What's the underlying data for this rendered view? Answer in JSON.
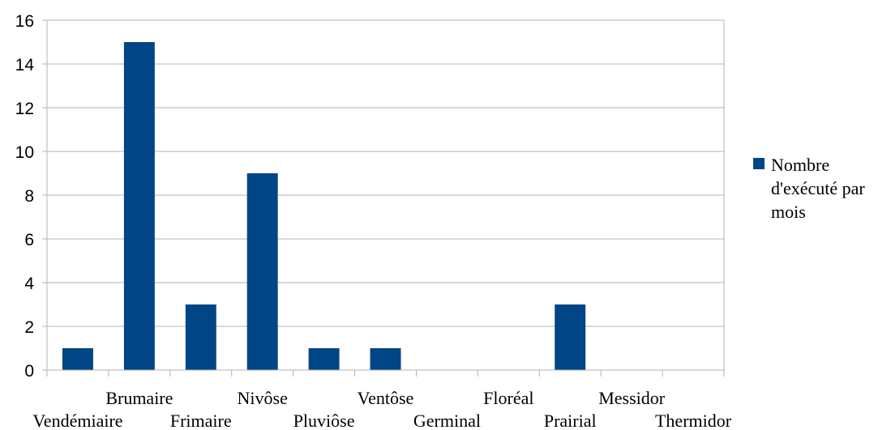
{
  "chart_data": {
    "type": "bar",
    "categories": [
      "Vendémiaire",
      "Brumaire",
      "Frimaire",
      "Nivôse",
      "Pluviôse",
      "Ventôse",
      "Germinal",
      "Floréal",
      "Prairial",
      "Messidor",
      "Thermidor"
    ],
    "series": [
      {
        "name": "Nombre d'exécuté par mois",
        "legend_lines": [
          "Nombre",
          "d'exécuté par",
          "mois"
        ],
        "values": [
          1,
          15,
          3,
          9,
          1,
          1,
          0,
          0,
          3,
          0,
          0
        ],
        "color": "#004586"
      }
    ],
    "yticks": [
      "0",
      "2",
      "4",
      "6",
      "8",
      "10",
      "12",
      "14",
      "16"
    ],
    "ylim": [
      0,
      16
    ],
    "grid": true,
    "legend_position": "right",
    "title": "",
    "xlabel": "",
    "ylabel": ""
  },
  "colors": {
    "bar": "#004586",
    "grid": "#b3b3b3",
    "axis": "#b3b3b3"
  }
}
